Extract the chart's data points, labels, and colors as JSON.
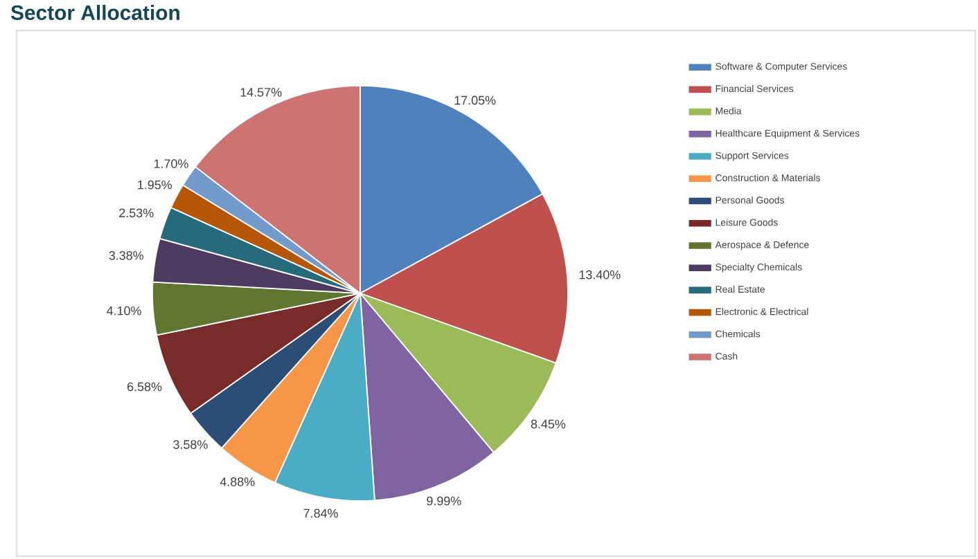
{
  "chart_data": {
    "type": "pie",
    "title": "Sector Allocation",
    "categories": [
      "Software & Computer Services",
      "Financial Services",
      "Media",
      "Healthcare Equipment & Services",
      "Support Services",
      "Construction & Materials",
      "Personal Goods",
      "Leisure Goods",
      "Aerospace & Defence",
      "Specialty Chemicals",
      "Real Estate",
      "Electronic & Electrical",
      "Chemicals",
      "Cash"
    ],
    "values": [
      17.05,
      13.4,
      8.45,
      9.99,
      7.84,
      4.88,
      3.58,
      6.58,
      4.1,
      3.38,
      2.53,
      1.95,
      1.7,
      14.57
    ],
    "value_labels": [
      "17.05%",
      "13.40%",
      "8.45%",
      "9.99%",
      "7.84%",
      "4.88%",
      "3.58%",
      "6.58%",
      "4.10%",
      "3.38%",
      "2.53%",
      "1.95%",
      "1.70%",
      "14.57%"
    ],
    "colors": [
      "#4f81bd",
      "#c0504d",
      "#9bbb59",
      "#8064a2",
      "#4bacc6",
      "#f79646",
      "#2c4d75",
      "#772c2a",
      "#5f7530",
      "#4d3b62",
      "#276a7c",
      "#b65708",
      "#729aca",
      "#cd7371"
    ],
    "legend": "right"
  }
}
